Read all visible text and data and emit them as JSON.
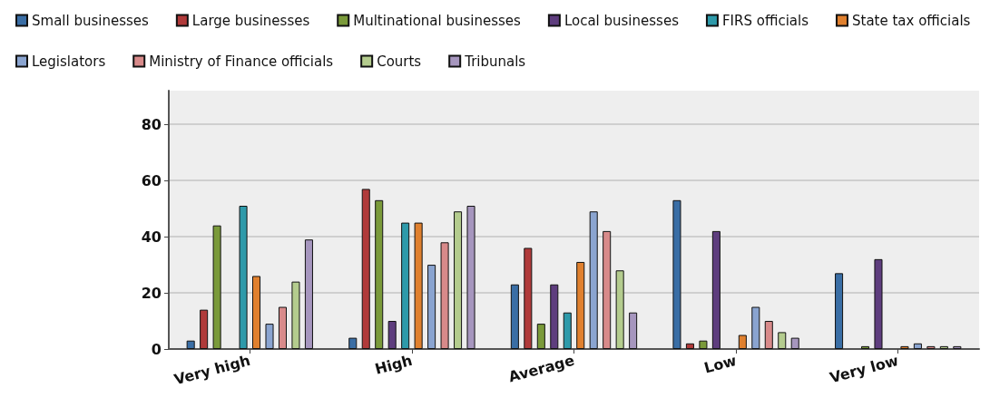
{
  "chart_data": {
    "type": "bar",
    "categories": [
      "Very high",
      "High",
      "Average",
      "Low",
      "Very low"
    ],
    "series": [
      {
        "name": "Small businesses",
        "color": "#3a6ea5",
        "values": [
          3,
          4,
          23,
          53,
          27
        ]
      },
      {
        "name": "Large businesses",
        "color": "#b03a3a",
        "values": [
          14,
          57,
          36,
          2,
          null
        ]
      },
      {
        "name": "Multinational businesses",
        "color": "#7a9a3a",
        "values": [
          44,
          53,
          9,
          3,
          1
        ]
      },
      {
        "name": "Local businesses",
        "color": "#5e3d7e",
        "values": [
          null,
          10,
          23,
          42,
          32
        ]
      },
      {
        "name": "FIRS officials",
        "color": "#2e9aaa",
        "values": [
          51,
          45,
          13,
          null,
          null
        ]
      },
      {
        "name": "State tax officials",
        "color": "#e0802e",
        "values": [
          26,
          45,
          31,
          5,
          1
        ]
      },
      {
        "name": "Legislators",
        "color": "#8aa4d0",
        "values": [
          9,
          30,
          49,
          15,
          2
        ]
      },
      {
        "name": "Ministry of Finance officials",
        "color": "#d88a8a",
        "values": [
          15,
          38,
          42,
          10,
          1
        ]
      },
      {
        "name": "Courts",
        "color": "#b4cc8e",
        "values": [
          24,
          49,
          28,
          6,
          1
        ]
      },
      {
        "name": "Tribunals",
        "color": "#a696be",
        "values": [
          39,
          51,
          13,
          4,
          1
        ]
      }
    ],
    "ylim": [
      0,
      92
    ],
    "yticks": [
      0,
      20,
      40,
      60,
      80
    ],
    "grid": "y",
    "legend": "top left"
  }
}
